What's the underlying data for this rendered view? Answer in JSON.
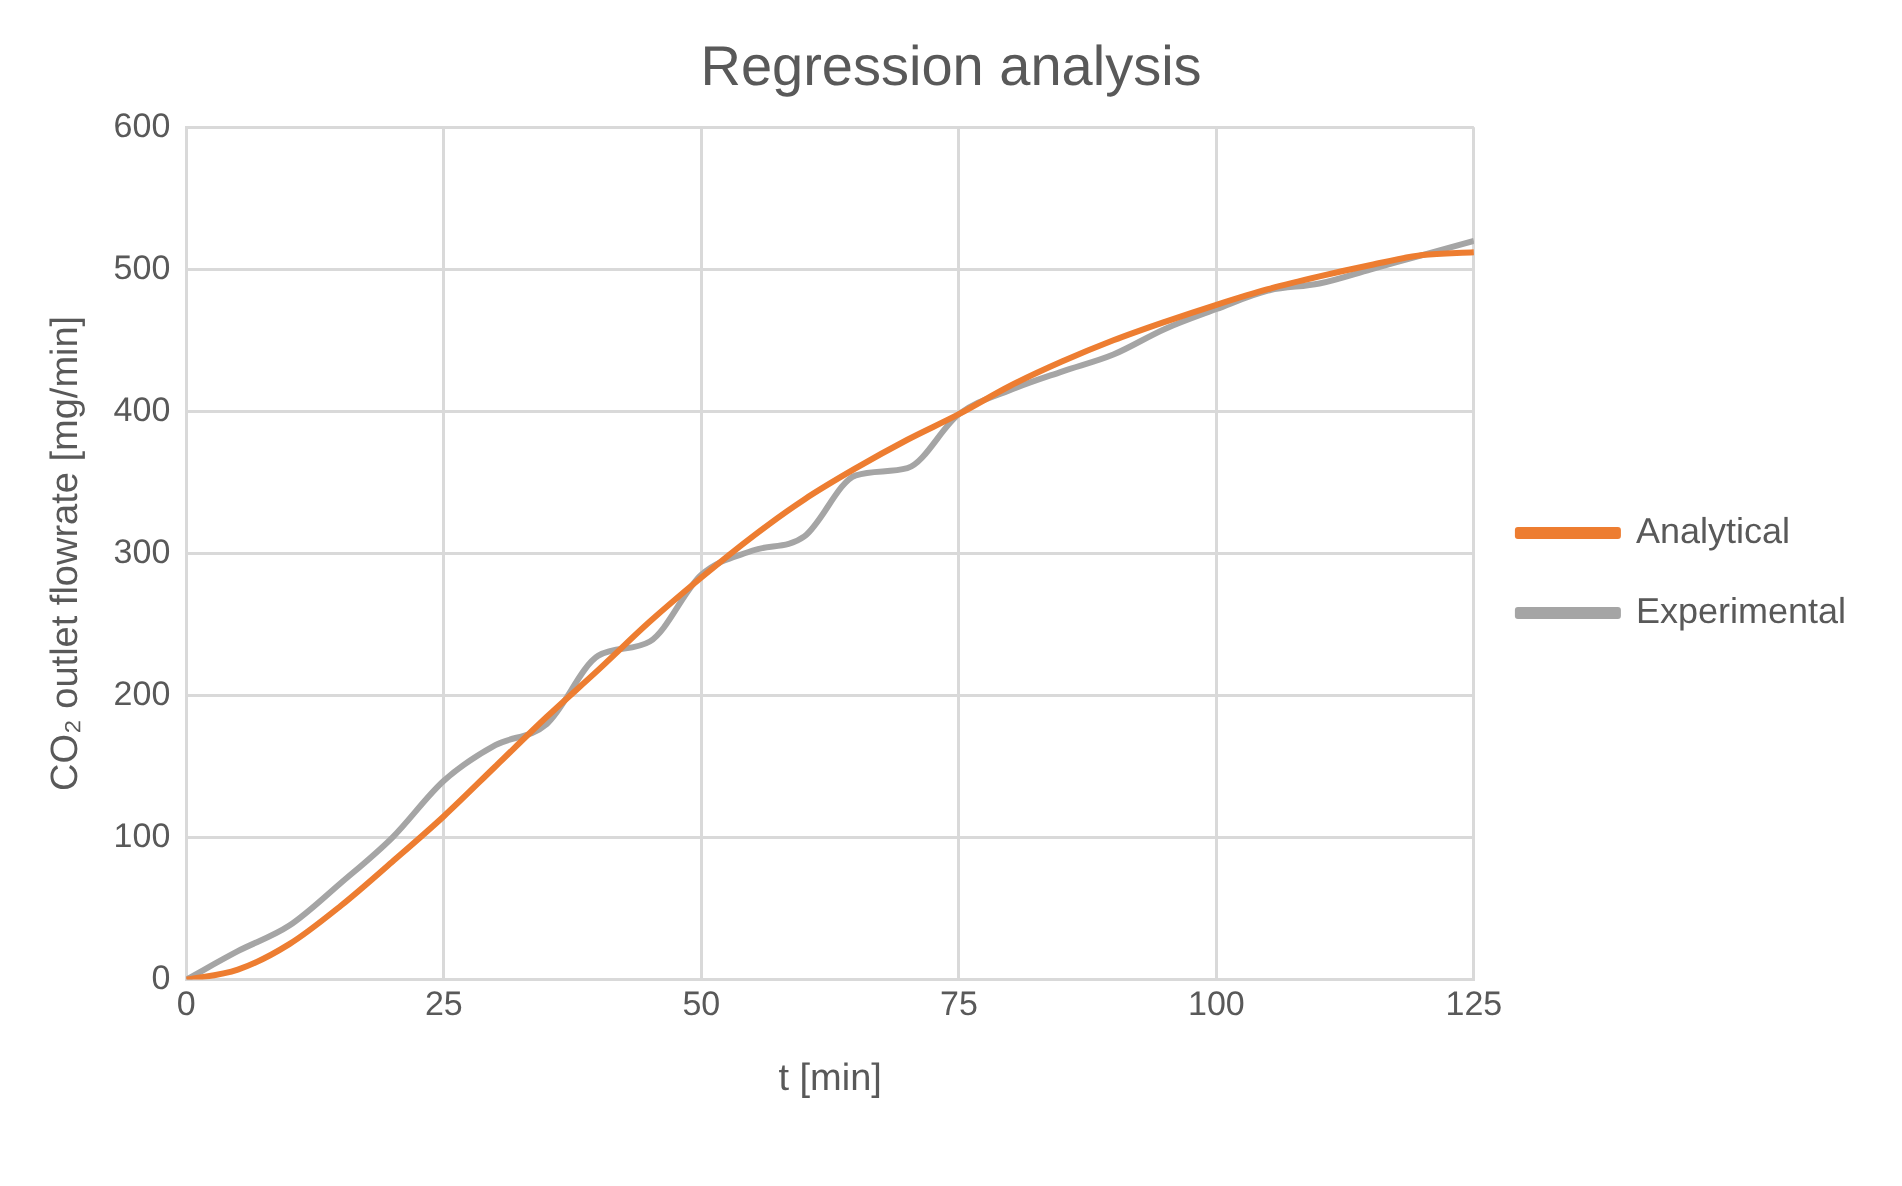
{
  "chart_data": {
    "type": "line",
    "title": "Regression analysis",
    "xlabel": "t [min]",
    "ylabel": "CO₂ outlet flowrate [mg/min]",
    "x": [
      0,
      5,
      10,
      15,
      20,
      25,
      30,
      35,
      40,
      45,
      50,
      55,
      60,
      65,
      70,
      75,
      80,
      85,
      90,
      95,
      100,
      105,
      110,
      115,
      120,
      125
    ],
    "series": [
      {
        "name": "Analytical",
        "color": "#ed7d31",
        "values": [
          0,
          7,
          25,
          52,
          83,
          115,
          150,
          185,
          218,
          252,
          283,
          312,
          338,
          360,
          380,
          398,
          418,
          435,
          450,
          463,
          475,
          486,
          495,
          503,
          510,
          512
        ]
      },
      {
        "name": "Experimental",
        "color": "#a5a5a5",
        "values": [
          0,
          20,
          38,
          68,
          100,
          140,
          165,
          180,
          228,
          238,
          285,
          302,
          312,
          355,
          360,
          398,
          415,
          428,
          440,
          458,
          472,
          485,
          490,
          500,
          510,
          520
        ]
      }
    ],
    "xlim": [
      0,
      125
    ],
    "xticks": [
      0,
      25,
      50,
      75,
      100,
      125
    ],
    "ylim": [
      0,
      600
    ],
    "yticks": [
      0,
      100,
      200,
      300,
      400,
      500,
      600
    ],
    "grid": true,
    "legend": "right",
    "marker": "none",
    "line_style": "solid"
  }
}
